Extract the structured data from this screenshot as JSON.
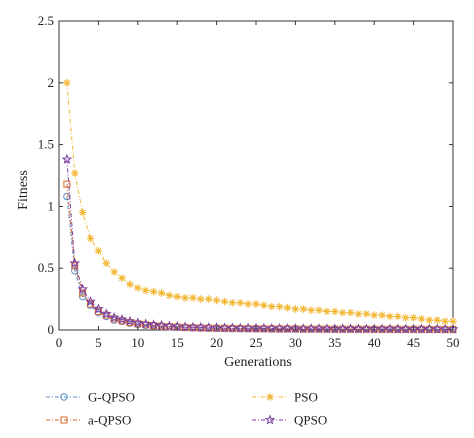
{
  "chart_data": {
    "type": "line",
    "xlabel": "Generations",
    "ylabel": "Fitness",
    "xlim": [
      0,
      50
    ],
    "ylim": [
      0,
      2.5
    ],
    "x_ticks": [
      "0",
      "5",
      "10",
      "15",
      "20",
      "25",
      "30",
      "35",
      "40",
      "45",
      "50"
    ],
    "y_ticks": [
      "0",
      "0.5",
      "1",
      "1.5",
      "2",
      "2.5"
    ],
    "grid": false,
    "legend_position": "bottom",
    "x": [
      1,
      2,
      3,
      4,
      5,
      6,
      7,
      8,
      9,
      10,
      11,
      12,
      13,
      14,
      15,
      16,
      17,
      18,
      19,
      20,
      21,
      22,
      23,
      24,
      25,
      26,
      27,
      28,
      29,
      30,
      31,
      32,
      33,
      34,
      35,
      36,
      37,
      38,
      39,
      40,
      41,
      42,
      43,
      44,
      45,
      46,
      47,
      48,
      49,
      50
    ],
    "series": [
      {
        "name": "G-QPSO",
        "color": "#5b8fc8",
        "marker": "circle",
        "values": [
          1.08,
          0.48,
          0.27,
          0.2,
          0.14,
          0.11,
          0.08,
          0.07,
          0.055,
          0.045,
          0.038,
          0.032,
          0.028,
          0.024,
          0.021,
          0.019,
          0.017,
          0.015,
          0.014,
          0.013,
          0.012,
          0.011,
          0.01,
          0.01,
          0.009,
          0.009,
          0.008,
          0.008,
          0.008,
          0.007,
          0.007,
          0.007,
          0.007,
          0.006,
          0.006,
          0.006,
          0.006,
          0.006,
          0.005,
          0.005,
          0.005,
          0.005,
          0.005,
          0.005,
          0.005,
          0.004,
          0.004,
          0.004,
          0.004,
          0.004
        ]
      },
      {
        "name": "a-QPSO",
        "color": "#d9692f",
        "marker": "square",
        "values": [
          1.18,
          0.52,
          0.3,
          0.21,
          0.15,
          0.12,
          0.09,
          0.075,
          0.06,
          0.05,
          0.042,
          0.036,
          0.031,
          0.027,
          0.024,
          0.021,
          0.019,
          0.017,
          0.016,
          0.015,
          0.014,
          0.013,
          0.012,
          0.011,
          0.011,
          0.01,
          0.01,
          0.009,
          0.009,
          0.009,
          0.008,
          0.008,
          0.008,
          0.008,
          0.007,
          0.007,
          0.007,
          0.007,
          0.007,
          0.006,
          0.006,
          0.006,
          0.006,
          0.006,
          0.006,
          0.006,
          0.005,
          0.005,
          0.005,
          0.005
        ]
      },
      {
        "name": "PSO",
        "color": "#f2b632",
        "marker": "asterisk",
        "values": [
          2.0,
          1.27,
          0.95,
          0.74,
          0.64,
          0.54,
          0.47,
          0.42,
          0.37,
          0.34,
          0.32,
          0.31,
          0.3,
          0.28,
          0.27,
          0.26,
          0.26,
          0.25,
          0.25,
          0.24,
          0.23,
          0.22,
          0.22,
          0.21,
          0.21,
          0.2,
          0.19,
          0.19,
          0.18,
          0.17,
          0.17,
          0.16,
          0.16,
          0.15,
          0.15,
          0.14,
          0.14,
          0.13,
          0.13,
          0.12,
          0.12,
          0.11,
          0.11,
          0.1,
          0.1,
          0.09,
          0.08,
          0.08,
          0.07,
          0.07
        ]
      },
      {
        "name": "QPSO",
        "color": "#7b3d9e",
        "marker": "star",
        "values": [
          1.38,
          0.54,
          0.33,
          0.23,
          0.17,
          0.13,
          0.1,
          0.085,
          0.07,
          0.058,
          0.049,
          0.042,
          0.036,
          0.032,
          0.028,
          0.025,
          0.023,
          0.021,
          0.019,
          0.018,
          0.017,
          0.016,
          0.015,
          0.014,
          0.013,
          0.013,
          0.012,
          0.012,
          0.011,
          0.011,
          0.01,
          0.01,
          0.01,
          0.009,
          0.009,
          0.009,
          0.009,
          0.008,
          0.008,
          0.008,
          0.008,
          0.008,
          0.007,
          0.007,
          0.007,
          0.007,
          0.007,
          0.007,
          0.006,
          0.006
        ]
      }
    ]
  }
}
